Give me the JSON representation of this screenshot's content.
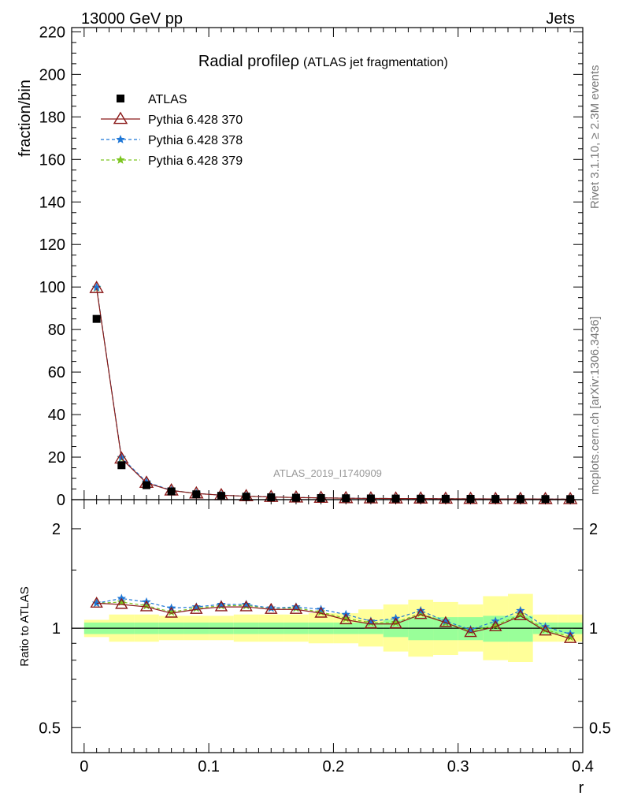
{
  "header": {
    "left": "13000 GeV pp",
    "right": "Jets"
  },
  "side_labels": {
    "rivet": "Rivet 3.1.10, ≥ 2.3M events",
    "mcplots": "mcplots.cern.ch [arXiv:1306.3436]"
  },
  "chart_data": [
    {
      "type": "scatter",
      "title": "Radial profileρ",
      "subtitle": "(ATLAS jet fragmentation)",
      "watermark": "ATLAS_2019_I1740909",
      "xlabel": "",
      "ylabel": "fraction/bin",
      "xlim": [
        -0.01,
        0.4
      ],
      "ylim": [
        0,
        222
      ],
      "x_ticks": [
        "0",
        "0.1",
        "0.2",
        "0.3",
        "0.4"
      ],
      "y_ticks": [
        "0",
        "20",
        "40",
        "60",
        "80",
        "100",
        "120",
        "140",
        "160",
        "180",
        "200",
        "220"
      ],
      "legend_position": "top-left",
      "x": [
        0.01,
        0.03,
        0.05,
        0.07,
        0.09,
        0.11,
        0.13,
        0.15,
        0.17,
        0.19,
        0.21,
        0.23,
        0.25,
        0.27,
        0.29,
        0.31,
        0.33,
        0.35,
        0.37,
        0.39
      ],
      "series": [
        {
          "name": "ATLAS",
          "marker": "square",
          "color": "#000000",
          "values": [
            85,
            16.2,
            6.8,
            3.9,
            2.5,
            1.8,
            1.4,
            1.1,
            0.9,
            0.75,
            0.65,
            0.55,
            0.5,
            0.45,
            0.4,
            0.37,
            0.34,
            0.3,
            0.28,
            0.26
          ]
        },
        {
          "name": "Pythia 6.428 370",
          "marker": "triangle",
          "color": "#8b1a1a",
          "line": "solid",
          "values": [
            99.5,
            19.3,
            7.9,
            4.3,
            2.9,
            2.1,
            1.6,
            1.25,
            1.0,
            0.83,
            0.68,
            0.57,
            0.52,
            0.5,
            0.42,
            0.36,
            0.34,
            0.33,
            0.27,
            0.24
          ]
        },
        {
          "name": "Pythia 6.428 378",
          "marker": "star",
          "color": "#1f77d6",
          "line": "dashed",
          "values": [
            99.8,
            19.8,
            8.3,
            4.4,
            2.9,
            2.1,
            1.65,
            1.27,
            1.02,
            0.86,
            0.71,
            0.58,
            0.53,
            0.51,
            0.42,
            0.37,
            0.35,
            0.34,
            0.28,
            0.25
          ]
        },
        {
          "name": "Pythia 6.428 379",
          "marker": "star",
          "color": "#7cc520",
          "line": "dashed",
          "values": [
            99.6,
            19.5,
            8.0,
            4.35,
            2.9,
            2.1,
            1.62,
            1.26,
            1.01,
            0.84,
            0.69,
            0.57,
            0.52,
            0.5,
            0.42,
            0.36,
            0.34,
            0.33,
            0.27,
            0.24
          ]
        }
      ]
    },
    {
      "type": "line",
      "ylabel": "Ratio to ATLAS",
      "xlabel": "r",
      "ylim": [
        0.42,
        2.45
      ],
      "log_scale_y": true,
      "y_ticks": [
        "0.5",
        "1",
        "2"
      ],
      "reference_line": 1,
      "x": [
        0.01,
        0.03,
        0.05,
        0.07,
        0.09,
        0.11,
        0.13,
        0.15,
        0.17,
        0.19,
        0.21,
        0.23,
        0.25,
        0.27,
        0.29,
        0.31,
        0.33,
        0.35,
        0.37,
        0.39
      ],
      "band_colors": {
        "inner": "#99ff99",
        "outer": "#ffff99"
      },
      "band_inner": {
        "low": [
          0.96,
          0.96,
          0.96,
          0.96,
          0.96,
          0.96,
          0.96,
          0.96,
          0.96,
          0.96,
          0.96,
          0.96,
          0.94,
          0.92,
          0.92,
          0.92,
          0.91,
          0.91,
          0.96,
          0.96
        ],
        "high": [
          1.04,
          1.04,
          1.04,
          1.04,
          1.04,
          1.04,
          1.04,
          1.04,
          1.04,
          1.04,
          1.04,
          1.04,
          1.06,
          1.08,
          1.08,
          1.08,
          1.09,
          1.09,
          1.04,
          1.04
        ]
      },
      "band_outer": {
        "low": [
          0.94,
          0.91,
          0.91,
          0.92,
          0.92,
          0.92,
          0.91,
          0.91,
          0.91,
          0.9,
          0.9,
          0.88,
          0.85,
          0.82,
          0.83,
          0.85,
          0.8,
          0.79,
          0.91,
          0.91
        ],
        "high": [
          1.06,
          1.1,
          1.1,
          1.09,
          1.09,
          1.09,
          1.1,
          1.1,
          1.1,
          1.11,
          1.11,
          1.14,
          1.18,
          1.22,
          1.2,
          1.18,
          1.25,
          1.27,
          1.1,
          1.1
        ]
      },
      "series": [
        {
          "name": "Pythia 6.428 370",
          "values": [
            1.19,
            1.18,
            1.16,
            1.11,
            1.14,
            1.16,
            1.16,
            1.14,
            1.14,
            1.11,
            1.06,
            1.03,
            1.03,
            1.1,
            1.04,
            0.97,
            1.01,
            1.09,
            0.98,
            0.93
          ]
        },
        {
          "name": "Pythia 6.428 378",
          "values": [
            1.19,
            1.23,
            1.2,
            1.15,
            1.16,
            1.18,
            1.18,
            1.15,
            1.16,
            1.14,
            1.1,
            1.05,
            1.07,
            1.13,
            1.05,
            0.99,
            1.05,
            1.13,
            1.01,
            0.96
          ]
        },
        {
          "name": "Pythia 6.428 379",
          "values": [
            1.19,
            1.2,
            1.17,
            1.12,
            1.15,
            1.17,
            1.17,
            1.15,
            1.15,
            1.12,
            1.07,
            1.04,
            1.04,
            1.11,
            1.04,
            0.98,
            1.02,
            1.1,
            0.99,
            0.94
          ]
        }
      ]
    }
  ]
}
